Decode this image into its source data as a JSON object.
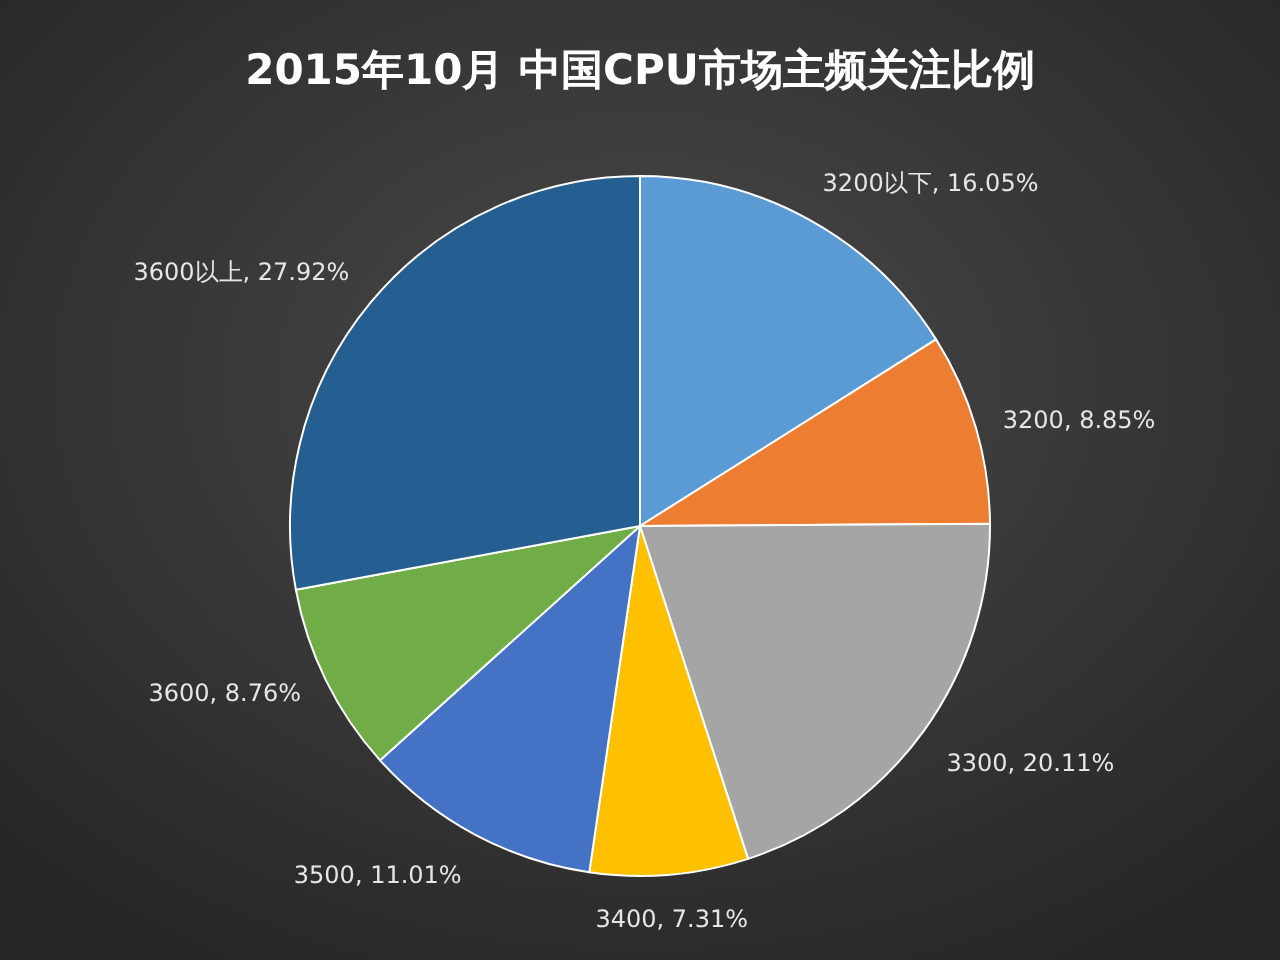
{
  "chart_data": {
    "type": "pie",
    "title": "2015年10月  中国CPU市场主频关注比例",
    "categories": [
      "3200以下",
      "3200",
      "3300",
      "3400",
      "3500",
      "3600",
      "3600以上"
    ],
    "values": [
      16.05,
      8.85,
      20.11,
      7.31,
      11.01,
      8.76,
      27.92
    ],
    "colors": [
      "#5b9bd5",
      "#ed7d31",
      "#a5a5a5",
      "#ffc000",
      "#4472c4",
      "#70ad47",
      "#255e91"
    ],
    "value_labels": [
      ", 16.05%",
      ", 8.85%",
      ", 20.11%",
      ", 7.31%",
      ", 11.01%",
      ", 8.76%",
      ", 27.92%"
    ]
  }
}
